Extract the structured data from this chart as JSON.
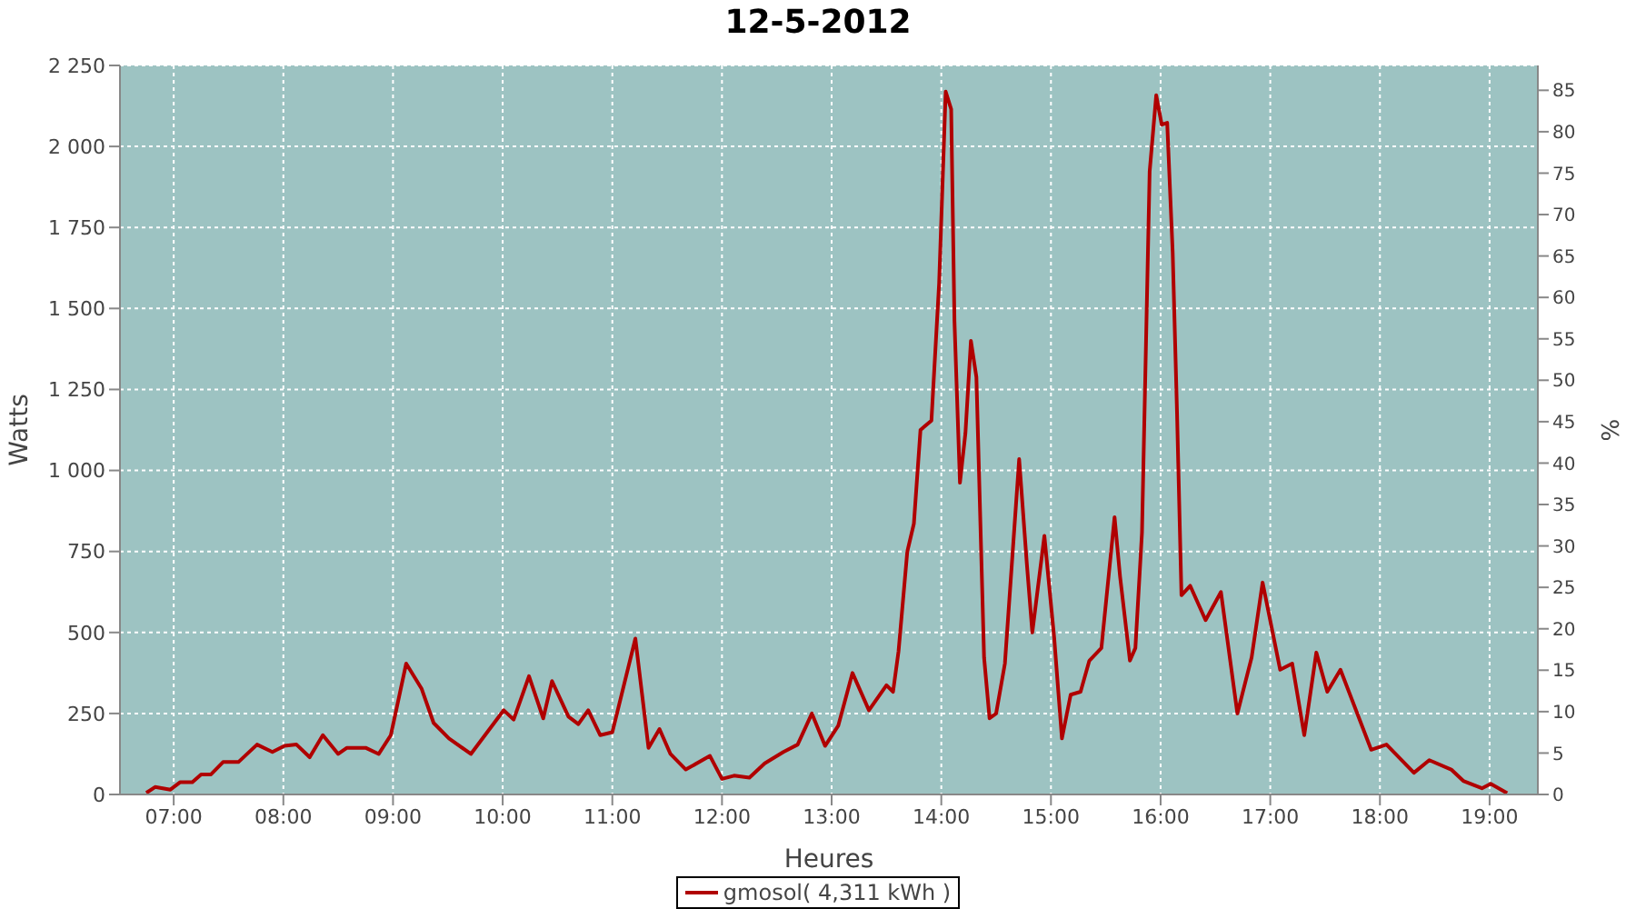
{
  "chart_data": {
    "type": "line",
    "title": "12-5-2012",
    "xlabel": "Heures",
    "ylabel": "Watts",
    "y2label": "%",
    "x": [
      6.75,
      6.83,
      6.97,
      7.06,
      7.17,
      7.25,
      7.34,
      7.45,
      7.59,
      7.76,
      7.9,
      8.01,
      8.12,
      8.24,
      8.36,
      8.5,
      8.58,
      8.75,
      8.87,
      8.98,
      9.12,
      9.26,
      9.37,
      9.51,
      9.71,
      10.01,
      10.1,
      10.24,
      10.37,
      10.45,
      10.6,
      10.69,
      10.78,
      10.89,
      11.0,
      11.21,
      11.33,
      11.43,
      11.53,
      11.67,
      11.89,
      12.0,
      12.11,
      12.25,
      12.39,
      12.56,
      12.69,
      12.82,
      12.94,
      13.06,
      13.19,
      13.34,
      13.5,
      13.56,
      13.61,
      13.69,
      13.75,
      13.81,
      13.91,
      13.98,
      14.04,
      14.09,
      14.12,
      14.17,
      14.22,
      14.27,
      14.32,
      14.39,
      14.44,
      14.5,
      14.58,
      14.71,
      14.78,
      14.83,
      14.94,
      15.03,
      15.1,
      15.18,
      15.27,
      15.35,
      15.46,
      15.58,
      15.63,
      15.72,
      15.77,
      15.83,
      15.9,
      15.96,
      16.01,
      16.06,
      16.11,
      16.15,
      16.19,
      16.27,
      16.41,
      16.55,
      16.7,
      16.83,
      16.93,
      17.09,
      17.2,
      17.31,
      17.42,
      17.52,
      17.64,
      17.92,
      18.06,
      18.31,
      18.45,
      18.65,
      18.76,
      18.93,
      19.01,
      19.16
    ],
    "series": [
      {
        "name": "gmosol( 4,311 kWh )",
        "color": "#b00000",
        "values": [
          5,
          23,
          15,
          38,
          38,
          62,
          62,
          100,
          100,
          154,
          131,
          150,
          154,
          115,
          183,
          125,
          144,
          144,
          125,
          183,
          404,
          327,
          221,
          173,
          125,
          260,
          231,
          365,
          235,
          350,
          240,
          217,
          260,
          183,
          192,
          481,
          144,
          202,
          125,
          77,
          119,
          48,
          58,
          52,
          96,
          131,
          154,
          250,
          150,
          212,
          375,
          260,
          337,
          317,
          442,
          750,
          836,
          1125,
          1154,
          1577,
          2169,
          2115,
          1461,
          962,
          1115,
          1400,
          1288,
          423,
          235,
          250,
          404,
          1035,
          712,
          500,
          798,
          481,
          173,
          308,
          317,
          413,
          452,
          856,
          673,
          413,
          452,
          808,
          1923,
          2158,
          2067,
          2073,
          1673,
          1173,
          615,
          644,
          538,
          625,
          250,
          423,
          654,
          385,
          404,
          183,
          438,
          317,
          385,
          138,
          154,
          67,
          106,
          77,
          42,
          19,
          33,
          4
        ]
      }
    ],
    "xlim": [
      6.51,
      19.44
    ],
    "xticks": [
      {
        "value": 7,
        "label": "07:00"
      },
      {
        "value": 8,
        "label": "08:00"
      },
      {
        "value": 9,
        "label": "09:00"
      },
      {
        "value": 10,
        "label": "10:00"
      },
      {
        "value": 11,
        "label": "11:00"
      },
      {
        "value": 12,
        "label": "12:00"
      },
      {
        "value": 13,
        "label": "13:00"
      },
      {
        "value": 14,
        "label": "14:00"
      },
      {
        "value": 15,
        "label": "15:00"
      },
      {
        "value": 16,
        "label": "16:00"
      },
      {
        "value": 17,
        "label": "17:00"
      },
      {
        "value": 18,
        "label": "18:00"
      },
      {
        "value": 19,
        "label": "19:00"
      }
    ],
    "ylim": [
      0,
      2250
    ],
    "yticks": [
      0,
      250,
      500,
      750,
      {
        "value": 1000,
        "label": "1 000"
      },
      {
        "value": 1250,
        "label": "1 250"
      },
      {
        "value": 1500,
        "label": "1 500"
      },
      {
        "value": 1750,
        "label": "1 750"
      },
      {
        "value": 2000,
        "label": "2 000"
      },
      {
        "value": 2250,
        "label": "2 250"
      }
    ],
    "y2lim": [
      0,
      88
    ],
    "y2ticks": [
      0,
      5,
      10,
      15,
      20,
      25,
      30,
      35,
      40,
      45,
      50,
      55,
      60,
      65,
      70,
      75,
      80,
      85
    ],
    "grid": true,
    "legend": "bottom",
    "marker": "none",
    "line_style": "solid"
  }
}
